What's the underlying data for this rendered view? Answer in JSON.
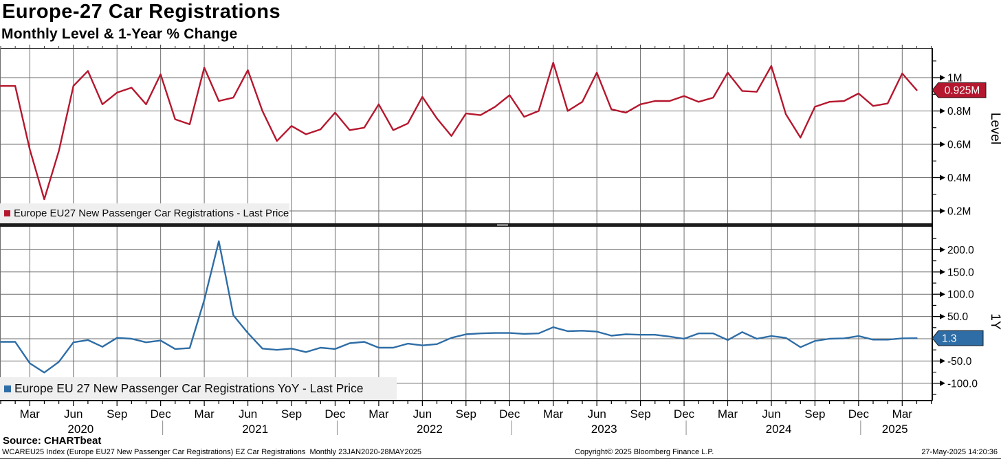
{
  "header": {
    "title": "Europe-27 Car Registrations",
    "subtitle": "Monthly Level & 1-Year % Change"
  },
  "footer": {
    "source": "Source: CHARTbeat",
    "description": "WCAREU25 Index (Europe EU27 New Passenger Car Registrations) EZ Car Registrations  Monthly 23JAN2020-28MAY2025",
    "copyright": "Copyright© 2025 Bloomberg Finance L.P.",
    "timestamp": "27-May-2025 14:20:36"
  },
  "x_axis": {
    "frequency": "monthly",
    "x_start": "2020-01",
    "x_end": "2025-04",
    "quarter_labels": [
      "Mar",
      "Jun",
      "Sep",
      "Dec"
    ],
    "years": [
      "2020",
      "2021",
      "2022",
      "2023",
      "2024",
      "2025"
    ]
  },
  "chart_data": [
    {
      "type": "line",
      "panel": "top",
      "series_name": "Europe EU27 New Passenger Car Registrations - Last Price",
      "axis_label": "Level",
      "color": "#b5172e",
      "ylim": [
        0.13,
        1.18
      ],
      "grid": true,
      "ytick_values": [
        1.0,
        0.8,
        0.6,
        0.4,
        0.2
      ],
      "ytick_labels": [
        "1M",
        "0.8M",
        "0.6M",
        "0.4M",
        "0.2M"
      ],
      "minor_tick_values": [
        1.1,
        0.9,
        0.7,
        0.5,
        0.3
      ],
      "last_value": 0.925,
      "last_label": "0.925M",
      "values": [
        0.95,
        0.95,
        0.57,
        0.27,
        0.56,
        0.95,
        1.04,
        0.84,
        0.91,
        0.94,
        0.84,
        1.02,
        0.75,
        0.72,
        1.06,
        0.86,
        0.88,
        1.045,
        0.8,
        0.62,
        0.71,
        0.66,
        0.69,
        0.79,
        0.685,
        0.7,
        0.84,
        0.685,
        0.725,
        0.885,
        0.755,
        0.65,
        0.785,
        0.775,
        0.825,
        0.895,
        0.765,
        0.8,
        1.09,
        0.8,
        0.855,
        1.03,
        0.81,
        0.79,
        0.84,
        0.86,
        0.86,
        0.89,
        0.855,
        0.88,
        1.03,
        0.92,
        0.915,
        1.07,
        0.78,
        0.64,
        0.825,
        0.855,
        0.86,
        0.905,
        0.83,
        0.845,
        1.025,
        0.925
      ]
    },
    {
      "type": "line",
      "panel": "bottom",
      "series_name": "Europe EU 27 New Passenger Car Registrations YoY - Last Price",
      "axis_label": "1Y",
      "color": "#2e6da6",
      "ylim": [
        -139,
        251
      ],
      "grid": true,
      "ytick_values": [
        200,
        150,
        100,
        50,
        -50,
        -100
      ],
      "ytick_labels": [
        "200.0",
        "150.0",
        "100.0",
        "50.0",
        "-50.0",
        "-100.0"
      ],
      "minor_tick_values": [
        225,
        175,
        125,
        75,
        25,
        -25,
        -75,
        -125
      ],
      "zero_line": 0,
      "last_value": 1.3,
      "last_label": "1.3",
      "values": [
        -7,
        -7,
        -55,
        -76,
        -52,
        -8,
        -3,
        -18,
        2,
        0,
        -8,
        -4,
        -23,
        -21,
        87,
        219,
        53,
        13,
        -22,
        -25,
        -22,
        -30,
        -20,
        -23,
        -10,
        -7,
        -20,
        -20,
        -11,
        -15,
        -12,
        2,
        10,
        12,
        13,
        13,
        11,
        12,
        26,
        17,
        18,
        16,
        7,
        10,
        9,
        9,
        5,
        0,
        12,
        12,
        -3,
        15,
        0,
        6,
        2,
        -19,
        -5,
        0,
        1,
        6,
        -2,
        -2,
        1,
        1.3
      ]
    }
  ]
}
